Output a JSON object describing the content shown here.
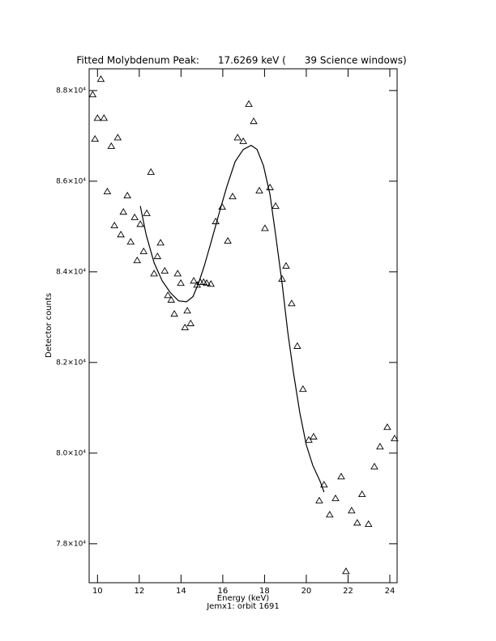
{
  "chart_data": {
    "type": "scatter",
    "title": "Fitted Molybdenum Peak:      17.6269 keV (      39 Science windows)",
    "xlabel": "Energy (keV)",
    "ylabel": "Detector counts",
    "subtitle": "Jemx1: orbit 1691",
    "xlim": [
      9.6,
      24.35
    ],
    "ylim": [
      77140,
      88480
    ],
    "xticks": [
      10,
      12,
      14,
      16,
      18,
      20,
      22,
      24
    ],
    "yticks": [
      {
        "value": 78000,
        "label": "7.8×10⁴"
      },
      {
        "value": 80000,
        "label": "8.0×10⁴"
      },
      {
        "value": 82000,
        "label": "8.2×10⁴"
      },
      {
        "value": 84000,
        "label": "8.4×10⁴"
      },
      {
        "value": 86000,
        "label": "8.6×10⁴"
      },
      {
        "value": 88000,
        "label": "8.8×10⁴"
      }
    ],
    "series": [
      {
        "type": "scatter",
        "marker": "triangle",
        "color": "#000000",
        "x": [
          9.77,
          9.88,
          10.0,
          10.16,
          10.31,
          10.47,
          10.66,
          10.81,
          10.97,
          11.12,
          11.24,
          11.43,
          11.59,
          11.78,
          11.9,
          12.05,
          12.21,
          12.36,
          12.56,
          12.71,
          12.87,
          13.02,
          13.22,
          13.37,
          13.53,
          13.68,
          13.84,
          13.99,
          14.19,
          14.3,
          14.46,
          14.61,
          14.77,
          14.92,
          15.08,
          15.23,
          15.43,
          15.66,
          15.97,
          16.24,
          16.47,
          16.71,
          16.98,
          17.25,
          17.48,
          17.75,
          18.02,
          18.26,
          18.53,
          18.84,
          19.03,
          19.3,
          19.57,
          19.84,
          20.12,
          20.35,
          20.62,
          20.85,
          21.12,
          21.4,
          21.67,
          21.9,
          22.17,
          22.44,
          22.67,
          22.98,
          23.26,
          23.53,
          23.88,
          24.23
        ],
        "values": [
          87910,
          86930,
          87390,
          88250,
          87390,
          85770,
          86770,
          85020,
          86960,
          84820,
          85320,
          85680,
          84660,
          85200,
          84250,
          85050,
          84450,
          85290,
          86200,
          83960,
          84340,
          84640,
          84020,
          83480,
          83380,
          83070,
          83960,
          83750,
          82770,
          83140,
          82860,
          83800,
          83710,
          83770,
          83770,
          83750,
          83730,
          85110,
          85430,
          84680,
          85660,
          86960,
          86880,
          87700,
          87320,
          85790,
          84960,
          85860,
          85450,
          83840,
          84130,
          83300,
          82360,
          81410,
          80290,
          80360,
          78950,
          79300,
          78640,
          79000,
          79480,
          77390,
          78730,
          78460,
          79090,
          78430,
          79700,
          80140,
          80570,
          80320
        ]
      },
      {
        "type": "line",
        "color": "#000000",
        "x": [
          12.05,
          12.33,
          12.71,
          13.1,
          13.49,
          13.88,
          14.26,
          14.57,
          14.84,
          15.12,
          15.43,
          15.81,
          16.2,
          16.59,
          16.98,
          17.36,
          17.64,
          17.95,
          18.26,
          18.53,
          18.84,
          19.11,
          19.38,
          19.69,
          20.0,
          20.31,
          20.66,
          20.85
        ],
        "values": [
          85450,
          84820,
          84200,
          83800,
          83540,
          83360,
          83340,
          83450,
          83750,
          84140,
          84640,
          85270,
          85890,
          86430,
          86700,
          86790,
          86700,
          86340,
          85710,
          84820,
          83750,
          82680,
          81790,
          80890,
          80180,
          79730,
          79380,
          79140
        ]
      }
    ]
  }
}
